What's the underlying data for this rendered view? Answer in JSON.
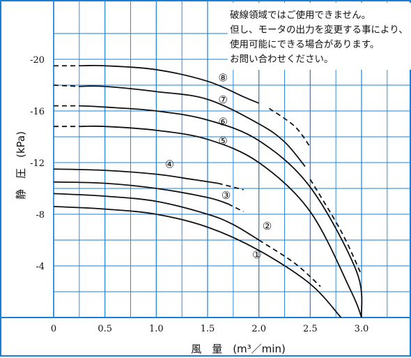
{
  "chart_data": {
    "type": "line",
    "xlabel": "風　量　(m³／min)",
    "ylabel": "静　圧　(kPa)",
    "xlim": [
      0,
      3.5
    ],
    "ylim": [
      0,
      -22
    ],
    "x_ticks": [
      "0",
      "0.5",
      "1.0",
      "1.5",
      "2.0",
      "2.5",
      "3.0"
    ],
    "y_ticks": [
      "-4",
      "-8",
      "-12",
      "-16",
      "-20"
    ],
    "note": [
      "破線領域ではご使用できません。",
      "但し、モータの出力を変更する事により、",
      "使用可能にできる場合があります。",
      "お問い合わせください。"
    ],
    "grid": true,
    "series": [
      {
        "name": "①",
        "solid": [
          [
            0,
            -8.6
          ],
          [
            0.5,
            -8.4
          ],
          [
            1.0,
            -8.0
          ],
          [
            1.5,
            -7.0
          ],
          [
            2.0,
            -5.2
          ],
          [
            2.5,
            -2.6
          ],
          [
            2.8,
            0
          ]
        ],
        "dashed": []
      },
      {
        "name": "②",
        "solid": [
          [
            0,
            -9.6
          ],
          [
            0.5,
            -9.4
          ],
          [
            1.0,
            -9.0
          ],
          [
            1.5,
            -8.0
          ],
          [
            1.75,
            -7.2
          ],
          [
            2.0,
            -6.0
          ]
        ],
        "dashed": [
          [
            2.0,
            -6.0
          ],
          [
            2.35,
            -4.2
          ],
          [
            2.6,
            -2.4
          ]
        ]
      },
      {
        "name": "③",
        "solid": [
          [
            0,
            -10.5
          ],
          [
            0.5,
            -10.4
          ],
          [
            1.0,
            -10.0
          ],
          [
            1.5,
            -9.3
          ],
          [
            1.7,
            -8.8
          ]
        ],
        "dashed": [
          [
            1.7,
            -8.8
          ],
          [
            1.85,
            -8.2
          ]
        ]
      },
      {
        "name": "④",
        "solid": [
          [
            0,
            -11.5
          ],
          [
            0.5,
            -11.4
          ],
          [
            1.0,
            -11.1
          ],
          [
            1.35,
            -10.7
          ],
          [
            1.6,
            -10.4
          ]
        ],
        "dashed": [
          [
            1.6,
            -10.4
          ],
          [
            1.8,
            -10.0
          ],
          [
            1.85,
            -9.9
          ]
        ]
      },
      {
        "name": "⑤",
        "solid": [
          [
            0.25,
            -14.8
          ],
          [
            0.5,
            -14.8
          ],
          [
            1.0,
            -14.5
          ],
          [
            1.5,
            -13.8
          ],
          [
            2.0,
            -12.0
          ],
          [
            2.5,
            -8.2
          ],
          [
            2.9,
            -2.0
          ],
          [
            3.0,
            0
          ]
        ],
        "dashed": [
          [
            0,
            -14.8
          ],
          [
            0.25,
            -14.8
          ]
        ]
      },
      {
        "name": "⑥",
        "solid": [
          [
            0.25,
            -16.4
          ],
          [
            0.5,
            -16.3
          ],
          [
            1.0,
            -16.0
          ],
          [
            1.5,
            -15.3
          ],
          [
            2.0,
            -13.7
          ],
          [
            2.5,
            -10.1
          ],
          [
            2.95,
            -3.6
          ],
          [
            3.0,
            0
          ]
        ],
        "dashed": [
          [
            0,
            -16.4
          ],
          [
            0.25,
            -16.4
          ]
        ]
      },
      {
        "name": "⑦",
        "solid": [
          [
            0.25,
            -17.9
          ],
          [
            0.5,
            -17.9
          ],
          [
            1.0,
            -17.5
          ],
          [
            1.5,
            -16.9
          ],
          [
            2.0,
            -15.0
          ],
          [
            2.25,
            -13.6
          ],
          [
            2.45,
            -11.7
          ]
        ],
        "dashed": [
          [
            0,
            -18.0
          ],
          [
            0.25,
            -17.9
          ]
        ],
        "dashed_after": [
          [
            2.5,
            -10.7
          ],
          [
            2.8,
            -6.7
          ],
          [
            3.0,
            -3.3
          ]
        ]
      },
      {
        "name": "⑧",
        "solid": [
          [
            0.25,
            -19.5
          ],
          [
            0.5,
            -19.5
          ],
          [
            1.0,
            -19.2
          ],
          [
            1.5,
            -18.3
          ],
          [
            1.85,
            -17.1
          ],
          [
            2.0,
            -16.6
          ]
        ],
        "dashed": [
          [
            0,
            -19.5
          ],
          [
            0.25,
            -19.5
          ]
        ],
        "dashed_after": [
          [
            2.1,
            -16.2
          ],
          [
            2.35,
            -14.8
          ],
          [
            2.5,
            -13.2
          ]
        ]
      }
    ],
    "series_label_positions": [
      {
        "name": "①",
        "x": 1.98,
        "y": -4.6
      },
      {
        "name": "②",
        "x": 2.08,
        "y": -6.8
      },
      {
        "name": "③",
        "x": 1.68,
        "y": -9.2
      },
      {
        "name": "④",
        "x": 1.13,
        "y": -11.6
      },
      {
        "name": "⑤",
        "x": 1.65,
        "y": -13.4
      },
      {
        "name": "⑥",
        "x": 1.65,
        "y": -14.9
      },
      {
        "name": "⑦",
        "x": 1.65,
        "y": -16.6
      },
      {
        "name": "⑧",
        "x": 1.65,
        "y": -18.3
      }
    ]
  }
}
